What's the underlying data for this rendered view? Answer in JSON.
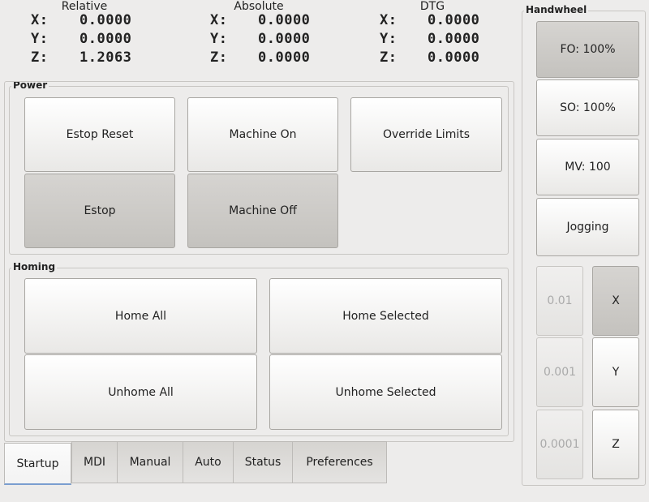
{
  "dro": [
    {
      "title": "Relative",
      "rows": [
        {
          "axis": "X:",
          "value": "0.0000"
        },
        {
          "axis": "Y:",
          "value": "0.0000"
        },
        {
          "axis": "Z:",
          "value": "1.2063"
        }
      ]
    },
    {
      "title": "Absolute",
      "rows": [
        {
          "axis": "X:",
          "value": "0.0000"
        },
        {
          "axis": "Y:",
          "value": "0.0000"
        },
        {
          "axis": "Z:",
          "value": "0.0000"
        }
      ]
    },
    {
      "title": "DTG",
      "rows": [
        {
          "axis": "X:",
          "value": "0.0000"
        },
        {
          "axis": "Y:",
          "value": "0.0000"
        },
        {
          "axis": "Z:",
          "value": "0.0000"
        }
      ]
    }
  ],
  "power": {
    "title": "Power",
    "estop_reset": "Estop Reset",
    "machine_on": "Machine On",
    "override_limits": "Override Limits",
    "estop": "Estop",
    "machine_off": "Machine Off"
  },
  "homing": {
    "title": "Homing",
    "home_all": "Home All",
    "home_selected": "Home Selected",
    "unhome_all": "Unhome All",
    "unhome_selected": "Unhome Selected"
  },
  "tabs": [
    "Startup",
    "MDI",
    "Manual",
    "Auto",
    "Status",
    "Preferences"
  ],
  "active_tab": "Startup",
  "handwheel": {
    "title": "Handwheel",
    "fo": "FO: 100%",
    "so": "SO: 100%",
    "mv": "MV: 100",
    "jogging": "Jogging",
    "increments": [
      "0.01",
      "0.001",
      "0.0001"
    ],
    "axes": [
      "X",
      "Y",
      "Z"
    ],
    "selected_axis": "X"
  }
}
